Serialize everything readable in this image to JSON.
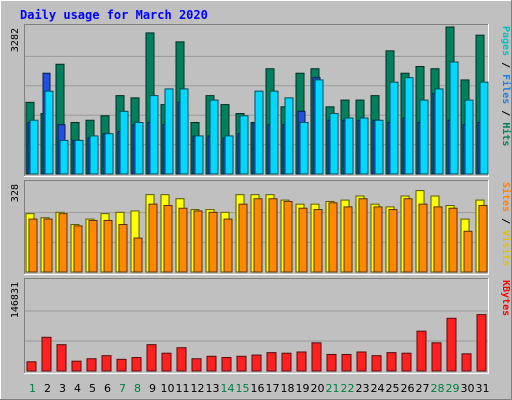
{
  "chart_data": {
    "type": "bar",
    "title": "Daily usage for March 2020",
    "categories": [
      "1",
      "2",
      "3",
      "4",
      "5",
      "6",
      "7",
      "8",
      "9",
      "10",
      "11",
      "12",
      "13",
      "14",
      "15",
      "16",
      "17",
      "18",
      "19",
      "20",
      "21",
      "22",
      "23",
      "24",
      "25",
      "26",
      "27",
      "28",
      "29",
      "30",
      "31"
    ],
    "weekend_days": [
      "1",
      "7",
      "8",
      "14",
      "15",
      "21",
      "22",
      "28",
      "29"
    ],
    "panels": [
      {
        "id": "hits_files_pages",
        "ylabel_parts": [
          {
            "text": "Pages",
            "color": "#00C0C0"
          },
          {
            "text": " / ",
            "color": "#000000"
          },
          {
            "text": "Files",
            "color": "#2080E0"
          },
          {
            "text": " / ",
            "color": "#000000"
          },
          {
            "text": "Hits",
            "color": "#00805C"
          }
        ],
        "max_label": "3282",
        "ylim": [
          0,
          3282
        ],
        "series": [
          {
            "name": "Hits",
            "color": "#00805C",
            "values": [
              1600,
              1350,
              2450,
              1150,
              1200,
              1300,
              1750,
              1700,
              3150,
              1550,
              2950,
              1150,
              1750,
              1550,
              1350,
              1150,
              2350,
              1500,
              2250,
              2350,
              1500,
              1650,
              1650,
              1750,
              2750,
              2250,
              2400,
              2350,
              3300,
              2100,
              3100
            ]
          },
          {
            "name": "Files",
            "color": "#2050E0",
            "values": [
              1150,
              2250,
              1100,
              750,
              800,
              900,
              950,
              1100,
              1150,
              1100,
              1600,
              850,
              850,
              800,
              900,
              1150,
              1100,
              1100,
              1400,
              2150,
              1200,
              1200,
              1200,
              1200,
              1150,
              1250,
              1150,
              1800,
              1200,
              1100,
              1150
            ]
          },
          {
            "name": "Pages",
            "color": "#00D8FF",
            "values": [
              1200,
              1850,
              750,
              750,
              850,
              900,
              1400,
              1150,
              1750,
              1900,
              1900,
              850,
              1650,
              850,
              1300,
              1850,
              1850,
              1700,
              1150,
              2100,
              1350,
              1250,
              1250,
              1200,
              2050,
              2150,
              1650,
              1900,
              2500,
              1650,
              2050
            ]
          }
        ]
      },
      {
        "id": "visits_sites",
        "ylabel_parts": [
          {
            "text": "Sites",
            "color": "#FF8000"
          },
          {
            "text": " / ",
            "color": "#000000"
          },
          {
            "text": "Visits",
            "color": "#E0C000"
          }
        ],
        "max_label": "328",
        "ylim": [
          0,
          328
        ],
        "series": [
          {
            "name": "Visits",
            "color": "#FFFF00",
            "values": [
              215,
              200,
              220,
              175,
              195,
              215,
              220,
              225,
              285,
              285,
              270,
              230,
              230,
              220,
              285,
              285,
              285,
              265,
              250,
              250,
              260,
              265,
              280,
              250,
              240,
              280,
              300,
              280,
              245,
              195,
              265
            ]
          },
          {
            "name": "Sites",
            "color": "#FF8800",
            "values": [
              195,
              195,
              215,
              170,
              190,
              190,
              175,
              125,
              250,
              245,
              235,
              225,
              220,
              195,
              250,
              270,
              270,
              260,
              235,
              230,
              255,
              240,
              270,
              240,
              230,
              270,
              250,
              240,
              235,
              150,
              245
            ]
          }
        ]
      },
      {
        "id": "kbytes",
        "ylabel_parts": [
          {
            "text": "KBytes",
            "color": "#FF0000"
          }
        ],
        "max_label": "146831",
        "ylim": [
          0,
          146831
        ],
        "series": [
          {
            "name": "KBytes",
            "color": "#FF2020",
            "values": [
              15000,
              55000,
              43000,
              16000,
              20000,
              25000,
              19000,
              22000,
              43000,
              29000,
              38000,
              20000,
              24000,
              22000,
              24000,
              26000,
              30000,
              29000,
              31000,
              46000,
              27000,
              27000,
              31000,
              25000,
              30000,
              29000,
              65000,
              46000,
              86000,
              28000,
              92000
            ]
          }
        ]
      }
    ]
  }
}
